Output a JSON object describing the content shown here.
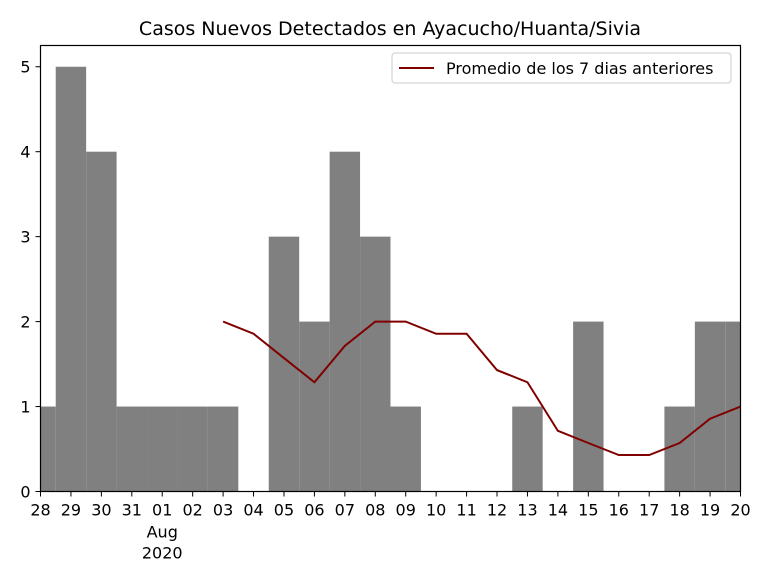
{
  "chart_data": {
    "type": "bar",
    "title": "Casos Nuevos Detectados en Ayacucho/Huanta/Sivia",
    "categories": [
      "28",
      "29",
      "30",
      "31",
      "01",
      "02",
      "03",
      "04",
      "05",
      "06",
      "07",
      "08",
      "09",
      "10",
      "11",
      "12",
      "13",
      "14",
      "15",
      "16",
      "17",
      "18",
      "19",
      "20"
    ],
    "x_sublabel": {
      "category": "01",
      "lines": [
        "Aug",
        "2020"
      ]
    },
    "series": [
      {
        "type": "bar",
        "color": "#808080",
        "values": [
          1,
          5,
          4,
          1,
          1,
          1,
          1,
          0,
          3,
          2,
          4,
          3,
          1,
          0,
          0,
          0,
          1,
          0,
          2,
          0,
          0,
          1,
          2,
          2
        ]
      },
      {
        "type": "line",
        "name": "Promedio de los 7 dias anteriores",
        "color": "#800000",
        "values": [
          null,
          null,
          null,
          null,
          null,
          null,
          2.0,
          1.857,
          1.571,
          1.286,
          1.714,
          2.0,
          2.0,
          1.857,
          1.857,
          1.429,
          1.286,
          0.714,
          0.571,
          0.429,
          0.429,
          0.571,
          0.857,
          1.0
        ]
      }
    ],
    "ylim": [
      0,
      5.25
    ],
    "yticks": [
      0,
      1,
      2,
      3,
      4,
      5
    ],
    "legend": "top-right",
    "grid": false,
    "xlabel": "",
    "ylabel": ""
  }
}
